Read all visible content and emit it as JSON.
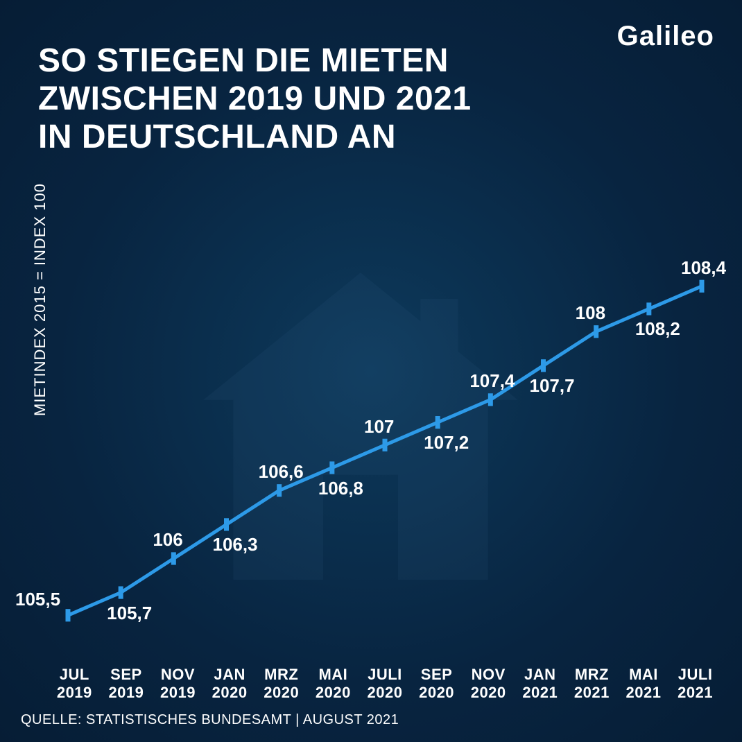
{
  "logo": "Galileo",
  "title_line1": "SO STIEGEN DIE MIETEN",
  "title_line2": "ZWISCHEN 2019 UND 2021",
  "title_line3": "IN DEUTSCHLAND AN",
  "ylabel": "MIETINDEX 2015 = INDEX 100",
  "source": "QUELLE: STATISTISCHES BUNDESAMT | AUGUST 2021",
  "chart": {
    "type": "line",
    "line_color": "#2d9ae8",
    "line_width": 5,
    "marker_color": "#2d9ae8",
    "marker_size": 7,
    "label_color": "#ffffff",
    "label_fontsize": 26,
    "background_color": "transparent",
    "ylim": [
      105.3,
      108.6
    ],
    "points": [
      {
        "month": "JUL",
        "year": "2019",
        "value": 105.5,
        "label": "105,5",
        "label_pos": "left"
      },
      {
        "month": "SEP",
        "year": "2019",
        "value": 105.7,
        "label": "105,7",
        "label_pos": "below"
      },
      {
        "month": "NOV",
        "year": "2019",
        "value": 106.0,
        "label": "106",
        "label_pos": "above"
      },
      {
        "month": "JAN",
        "year": "2020",
        "value": 106.3,
        "label": "106,3",
        "label_pos": "below"
      },
      {
        "month": "MRZ",
        "year": "2020",
        "value": 106.6,
        "label": "106,6",
        "label_pos": "above"
      },
      {
        "month": "MAI",
        "year": "2020",
        "value": 106.8,
        "label": "106,8",
        "label_pos": "below"
      },
      {
        "month": "JULI",
        "year": "2020",
        "value": 107.0,
        "label": "107",
        "label_pos": "above"
      },
      {
        "month": "SEP",
        "year": "2020",
        "value": 107.2,
        "label": "107,2",
        "label_pos": "below"
      },
      {
        "month": "NOV",
        "year": "2020",
        "value": 107.4,
        "label": "107,4",
        "label_pos": "above"
      },
      {
        "month": "JAN",
        "year": "2021",
        "value": 107.7,
        "label": "107,7",
        "label_pos": "below"
      },
      {
        "month": "MRZ",
        "year": "2021",
        "value": 108.0,
        "label": "108",
        "label_pos": "above"
      },
      {
        "month": "MAI",
        "year": "2021",
        "value": 108.2,
        "label": "108,2",
        "label_pos": "below"
      },
      {
        "month": "JULI",
        "year": "2021",
        "value": 108.4,
        "label": "108,4",
        "label_pos": "above"
      }
    ]
  }
}
